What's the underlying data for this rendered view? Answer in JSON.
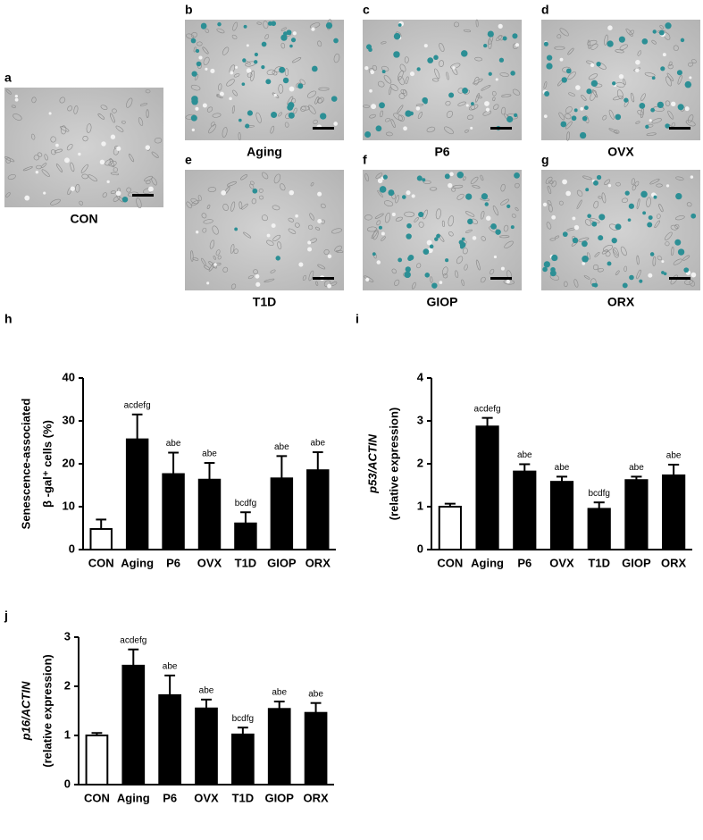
{
  "panels": [
    {
      "label": "a",
      "caption": "CON"
    },
    {
      "label": "b",
      "caption": "Aging"
    },
    {
      "label": "c",
      "caption": "P6"
    },
    {
      "label": "d",
      "caption": "OVX"
    },
    {
      "label": "e",
      "caption": "T1D"
    },
    {
      "label": "f",
      "caption": "GIOP"
    },
    {
      "label": "g",
      "caption": "ORX"
    }
  ],
  "chart_data": [
    {
      "type": "bar",
      "panel_label": "h",
      "ylabel": [
        "Senescence-associated",
        "β -gal⁺ cells (%)"
      ],
      "categories": [
        "CON",
        "Aging",
        "P6",
        "OVX",
        "T1D",
        "GIOP",
        "ORX"
      ],
      "values": [
        4.8,
        25.7,
        17.6,
        16.3,
        6.1,
        16.6,
        18.5
      ],
      "errors": [
        2.2,
        5.8,
        5.0,
        3.9,
        2.6,
        5.2,
        4.2
      ],
      "annotations": [
        null,
        "acdefg",
        "abe",
        "abe",
        "bcdfg",
        "abe",
        "abe"
      ],
      "colors": [
        "#ffffff",
        "#000000",
        "#000000",
        "#000000",
        "#000000",
        "#000000",
        "#000000"
      ],
      "ylim": [
        0,
        40
      ],
      "yticks": [
        0,
        10,
        20,
        30,
        40
      ]
    },
    {
      "type": "bar",
      "panel_label": "i",
      "ylabel": [
        "p53/ACTIN",
        "(relative expression)"
      ],
      "categories": [
        "CON",
        "Aging",
        "P6",
        "OVX",
        "T1D",
        "GIOP",
        "ORX"
      ],
      "values": [
        1.0,
        2.87,
        1.82,
        1.58,
        0.95,
        1.62,
        1.73
      ],
      "errors": [
        0.07,
        0.2,
        0.17,
        0.12,
        0.15,
        0.08,
        0.25
      ],
      "annotations": [
        null,
        "acdefg",
        "abe",
        "abe",
        "bcdfg",
        "abe",
        "abe"
      ],
      "colors": [
        "#ffffff",
        "#000000",
        "#000000",
        "#000000",
        "#000000",
        "#000000",
        "#000000"
      ],
      "ylim": [
        0,
        4
      ],
      "yticks": [
        0,
        1,
        2,
        3,
        4
      ]
    },
    {
      "type": "bar",
      "panel_label": "j",
      "ylabel": [
        "p16/ACTIN",
        "(relative expression)"
      ],
      "categories": [
        "CON",
        "Aging",
        "P6",
        "OVX",
        "T1D",
        "GIOP",
        "ORX"
      ],
      "values": [
        1.0,
        2.42,
        1.82,
        1.55,
        1.02,
        1.54,
        1.46
      ],
      "errors": [
        0.05,
        0.33,
        0.4,
        0.18,
        0.14,
        0.15,
        0.2
      ],
      "annotations": [
        null,
        "acdefg",
        "abe",
        "abe",
        "bcdfg",
        "abe",
        "abe"
      ],
      "colors": [
        "#ffffff",
        "#000000",
        "#000000",
        "#000000",
        "#000000",
        "#000000",
        "#000000"
      ],
      "ylim": [
        0,
        3
      ],
      "yticks": [
        0,
        1,
        2,
        3
      ]
    }
  ]
}
